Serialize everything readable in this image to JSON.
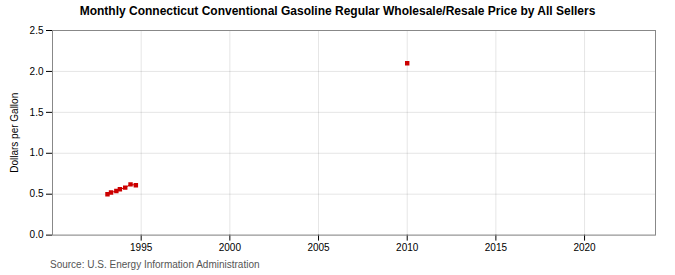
{
  "chart_data": {
    "type": "line",
    "title": "Monthly Connecticut Conventional Gasoline Regular Wholesale/Resale Price by All Sellers",
    "ylabel": "Dollars per Gallon",
    "source": "Source: U.S. Energy Information Administration",
    "series": [
      {
        "x": [
          1993.1,
          1993.3,
          1993.6,
          1993.8,
          1994.1,
          1994.4,
          1994.7
        ],
        "values": [
          0.5,
          0.52,
          0.54,
          0.56,
          0.58,
          0.62,
          0.61
        ],
        "color": "#cc0000",
        "marker": "square",
        "line_style": "solid"
      },
      {
        "x": [
          2010.0
        ],
        "values": [
          2.1
        ],
        "color": "#cc0000",
        "marker": "square",
        "line_style": "none"
      }
    ],
    "xlim": [
      1990,
      2024
    ],
    "ylim": [
      0.0,
      2.5
    ],
    "xticks": [
      1995,
      2000,
      2005,
      2010,
      2015,
      2020
    ],
    "yticks": [
      {
        "value": 0.0,
        "label": "0.0"
      },
      0.5,
      {
        "value": 1.0,
        "label": "1.0"
      },
      1.5,
      {
        "value": 2.0,
        "label": "2.0"
      },
      2.5
    ],
    "grid": true
  }
}
